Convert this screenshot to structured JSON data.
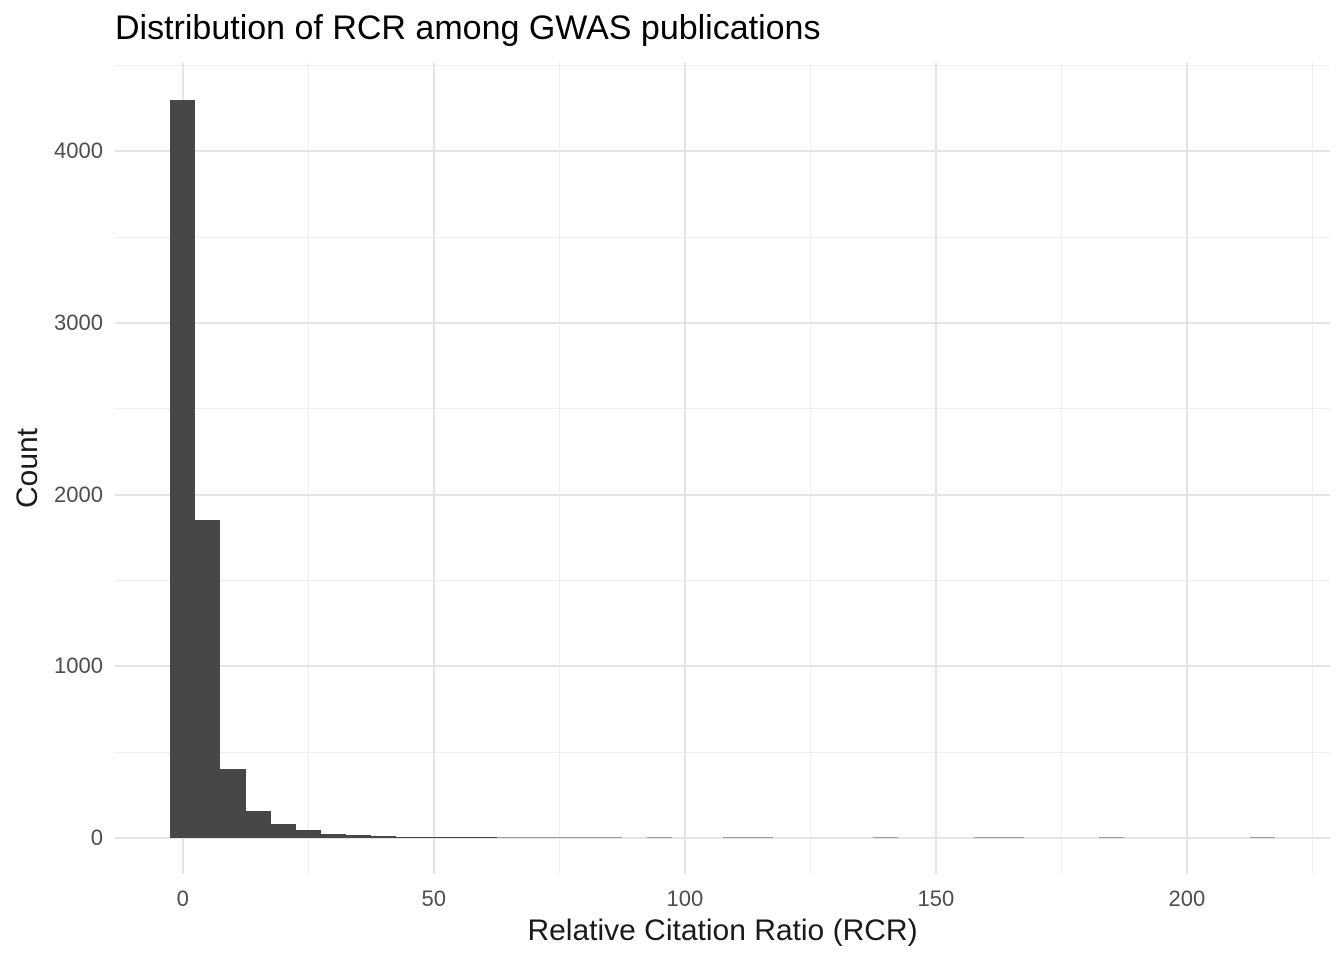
{
  "title": "Distribution of RCR among GWAS publications",
  "chart_data": {
    "type": "bar",
    "variant": "histogram",
    "title": "Distribution of RCR among GWAS publications",
    "xlabel": "Relative Citation Ratio (RCR)",
    "ylabel": "Count",
    "binwidth": 5,
    "bin_centers": [
      0,
      5,
      10,
      15,
      20,
      25,
      30,
      35,
      40,
      45,
      50,
      55,
      60,
      65,
      70,
      75,
      80,
      85,
      90,
      95,
      100,
      105,
      110,
      115,
      120,
      125,
      130,
      135,
      140,
      145,
      150,
      155,
      160,
      165,
      170,
      175,
      180,
      185,
      190,
      195,
      200,
      205,
      210,
      215
    ],
    "counts": [
      4300,
      1850,
      400,
      160,
      82,
      45,
      25,
      15,
      10,
      7,
      5,
      4,
      3,
      2,
      2,
      1,
      1,
      1,
      0,
      2,
      0,
      0,
      1,
      1,
      0,
      0,
      0,
      0,
      1,
      0,
      0,
      0,
      1,
      1,
      0,
      0,
      0,
      1,
      0,
      0,
      0,
      0,
      0,
      1
    ],
    "x_ticks": [
      0,
      50,
      100,
      150,
      200
    ],
    "x_tick_labels": [
      "0",
      "50",
      "100",
      "150",
      "200"
    ],
    "x_minor_ticks": [
      25,
      75,
      125,
      175,
      225
    ],
    "y_ticks": [
      0,
      1000,
      2000,
      3000,
      4000
    ],
    "y_tick_labels": [
      "0",
      "1000",
      "2000",
      "3000",
      "4000"
    ],
    "y_minor_ticks": [
      500,
      1500,
      2500,
      3500,
      4500
    ],
    "xlim": [
      -13.5,
      228.5
    ],
    "ylim": [
      0,
      4515
    ],
    "grid": true,
    "legend_position": "none",
    "colors": {
      "bar_fill": "#474747",
      "grid_major": "#e4e4e4",
      "grid_minor": "#efefef",
      "tick_text": "#4d4d4d",
      "title_text": "#000000",
      "axis_title_text": "#1a1a1a",
      "background": "#ffffff"
    }
  }
}
